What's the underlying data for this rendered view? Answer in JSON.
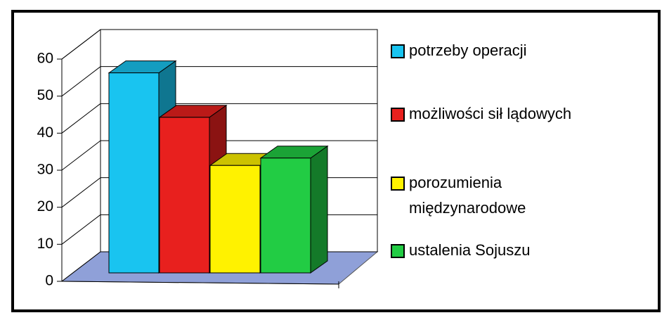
{
  "chart_data": {
    "type": "bar3d",
    "categories": [
      "potrzeby operacji",
      "możliwości sił lądowych",
      "porozumienia międzynarodowe",
      "ustalenia Sojuszu"
    ],
    "values": [
      54,
      42,
      29,
      31
    ],
    "colors": [
      "#19c4f0",
      "#e8201e",
      "#fff200",
      "#22cc44"
    ],
    "ylim": [
      0,
      60
    ],
    "yticks": [
      0,
      10,
      20,
      30,
      40,
      50,
      60
    ],
    "grid": true,
    "legend": "right"
  }
}
